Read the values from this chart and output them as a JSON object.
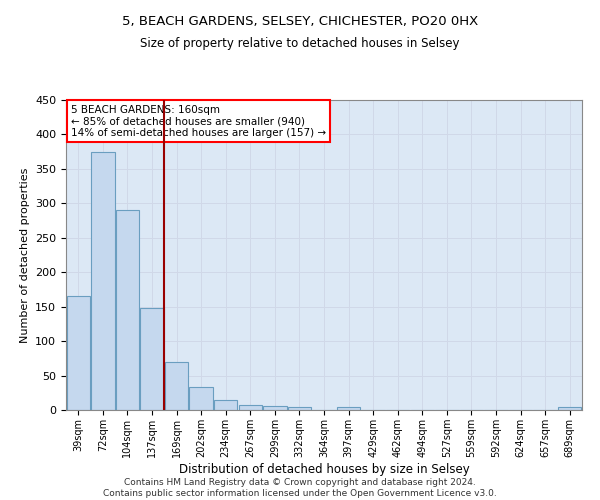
{
  "title1": "5, BEACH GARDENS, SELSEY, CHICHESTER, PO20 0HX",
  "title2": "Size of property relative to detached houses in Selsey",
  "xlabel": "Distribution of detached houses by size in Selsey",
  "ylabel": "Number of detached properties",
  "bar_labels": [
    "39sqm",
    "72sqm",
    "104sqm",
    "137sqm",
    "169sqm",
    "202sqm",
    "234sqm",
    "267sqm",
    "299sqm",
    "332sqm",
    "364sqm",
    "397sqm",
    "429sqm",
    "462sqm",
    "494sqm",
    "527sqm",
    "559sqm",
    "592sqm",
    "624sqm",
    "657sqm",
    "689sqm"
  ],
  "bar_values": [
    165,
    375,
    290,
    148,
    70,
    33,
    14,
    7,
    6,
    5,
    0,
    4,
    0,
    0,
    0,
    0,
    0,
    0,
    0,
    0,
    4
  ],
  "bar_color": "#c5d8ee",
  "bar_edge_color": "#6a9ec0",
  "grid_color": "#d0d8e8",
  "background_color": "#dce8f5",
  "vline_color": "#990000",
  "annotation_text": "5 BEACH GARDENS: 160sqm\n← 85% of detached houses are smaller (940)\n14% of semi-detached houses are larger (157) →",
  "annotation_box_color": "white",
  "annotation_box_edge": "red",
  "footer": "Contains HM Land Registry data © Crown copyright and database right 2024.\nContains public sector information licensed under the Open Government Licence v3.0.",
  "ylim": [
    0,
    450
  ],
  "yticks": [
    0,
    50,
    100,
    150,
    200,
    250,
    300,
    350,
    400,
    450
  ]
}
